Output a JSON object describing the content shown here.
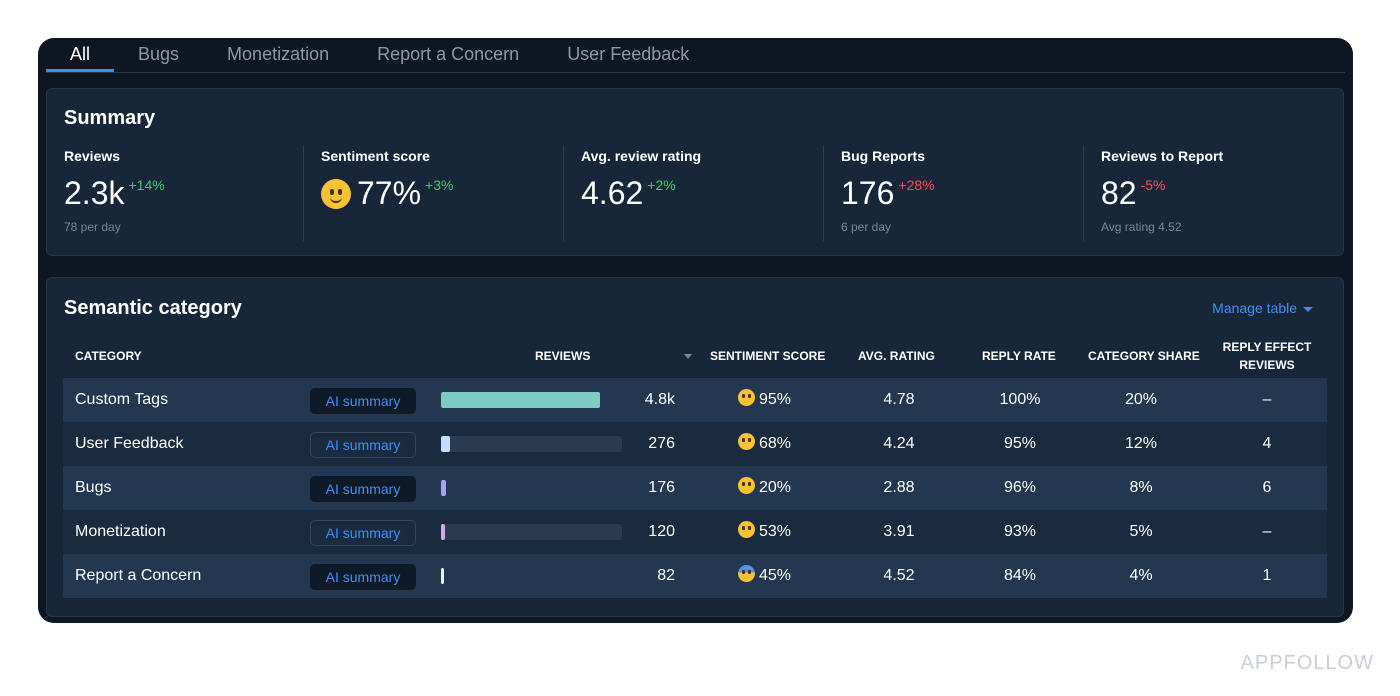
{
  "tabs": [
    {
      "label": "All",
      "active": true
    },
    {
      "label": "Bugs",
      "active": false
    },
    {
      "label": "Monetization",
      "active": false
    },
    {
      "label": "Report a Concern",
      "active": false
    },
    {
      "label": "User Feedback",
      "active": false
    }
  ],
  "summary": {
    "title": "Summary",
    "metrics": [
      {
        "label": "Reviews",
        "value": "2.3k",
        "delta": "+14%",
        "sub": "78 per day"
      },
      {
        "label": "Sentiment score",
        "value": "77%",
        "delta": "+3%",
        "sub": "",
        "icon": "slightly-smiling-face-icon"
      },
      {
        "label": "Avg. review rating",
        "value": "4.62",
        "delta": "+2%",
        "sub": ""
      },
      {
        "label": "Bug Reports",
        "value": "176",
        "delta": "+28%",
        "sub": "6 per day"
      },
      {
        "label": "Reviews to Report",
        "value": "82",
        "delta": "-5%",
        "sub": "Avg rating 4.52"
      }
    ],
    "colors": {
      "delta_up": "#3ccb6a",
      "delta_down": "#ff4a5e"
    }
  },
  "semantic": {
    "title": "Semantic category",
    "manage_label": "Manage table",
    "headers": {
      "category": "CATEGORY",
      "reviews": "REVIEWS",
      "sentiment": "SENTIMENT SCORE",
      "avg_rating": "AVG. RATING",
      "reply_rate": "REPLY RATE",
      "category_share": "CATEGORY SHARE",
      "reply_effect_1": "REPLY EFFECT",
      "reply_effect_2": "REVIEWS"
    },
    "ai_label": "AI summary",
    "rows": [
      {
        "category": "Custom Tags",
        "reviews": "4.8k",
        "reviews_share": 0.88,
        "bar_color": "#7ecbc6",
        "sentiment": "95%",
        "sentiment_icon": "star-struck-face-icon",
        "avg_rating": "4.78",
        "reply_rate": "100%",
        "category_share": "20%",
        "reply_effect": "–"
      },
      {
        "category": "User Feedback",
        "reviews": "276",
        "reviews_share": 0.05,
        "bar_color": "#c6dcff",
        "sentiment": "68%",
        "sentiment_icon": "confused-face-icon",
        "avg_rating": "4.24",
        "reply_rate": "95%",
        "category_share": "12%",
        "reply_effect": "4"
      },
      {
        "category": "Bugs",
        "reviews": "176",
        "reviews_share": 0.03,
        "bar_color": "#a9a2f2",
        "sentiment": "20%",
        "sentiment_icon": "astonished-face-icon",
        "avg_rating": "2.88",
        "reply_rate": "96%",
        "category_share": "8%",
        "reply_effect": "6"
      },
      {
        "category": "Monetization",
        "reviews": "120",
        "reviews_share": 0.02,
        "bar_color": "#d9a9f0",
        "sentiment": "53%",
        "sentiment_icon": "confused-face-icon",
        "avg_rating": "3.91",
        "reply_rate": "93%",
        "category_share": "5%",
        "reply_effect": "–"
      },
      {
        "category": "Report a Concern",
        "reviews": "82",
        "reviews_share": 0.015,
        "bar_color": "#eef2f7",
        "sentiment": "45%",
        "sentiment_icon": "screaming-face-icon",
        "avg_rating": "4.52",
        "reply_rate": "84%",
        "category_share": "4%",
        "reply_effect": "1"
      }
    ]
  },
  "watermark": "APPFOLLOW"
}
